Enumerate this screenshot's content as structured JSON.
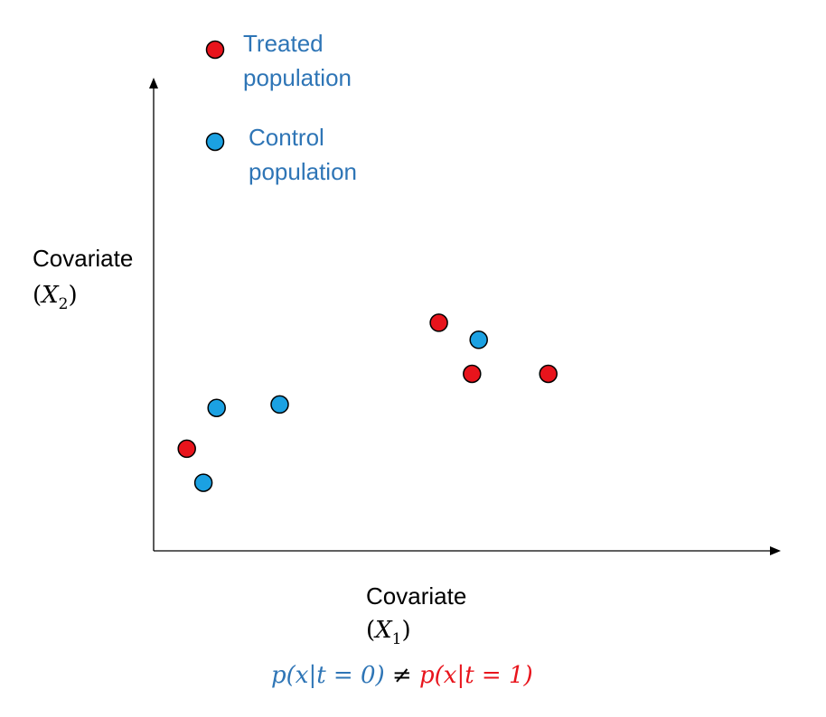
{
  "colors": {
    "treated": "#e8141c",
    "control": "#1ba1e2",
    "control_text": "#2e75b6",
    "treated_text": "#e8141c",
    "axis": "#000000"
  },
  "legend": {
    "treated": {
      "line1": "Treated",
      "line2": "population",
      "marker": "red-circle"
    },
    "control": {
      "line1": "Control",
      "line2": "population",
      "marker": "blue-circle"
    }
  },
  "axes": {
    "y_label_line1": "Covariate",
    "y_label_math": "(X",
    "y_sub": "2",
    "x_label_line1": "Covariate",
    "x_label_math": "(X",
    "x_sub": "1",
    "close": ")"
  },
  "formula": {
    "left_a": "p",
    "left_b": "(x|t = 0)",
    "neq": " ≠ ",
    "right_a": "p",
    "right_b": "(x|t = 1)"
  },
  "points": {
    "treated": [
      {
        "x1": 1.0,
        "x2": 3.0
      },
      {
        "x1": 8.6,
        "x2": 6.7
      },
      {
        "x1": 9.6,
        "x2": 5.2
      },
      {
        "x1": 11.9,
        "x2": 5.2
      }
    ],
    "control": [
      {
        "x1": 1.5,
        "x2": 2.0
      },
      {
        "x1": 1.9,
        "x2": 4.2
      },
      {
        "x1": 3.8,
        "x2": 4.3
      },
      {
        "x1": 9.8,
        "x2": 6.2
      }
    ]
  }
}
